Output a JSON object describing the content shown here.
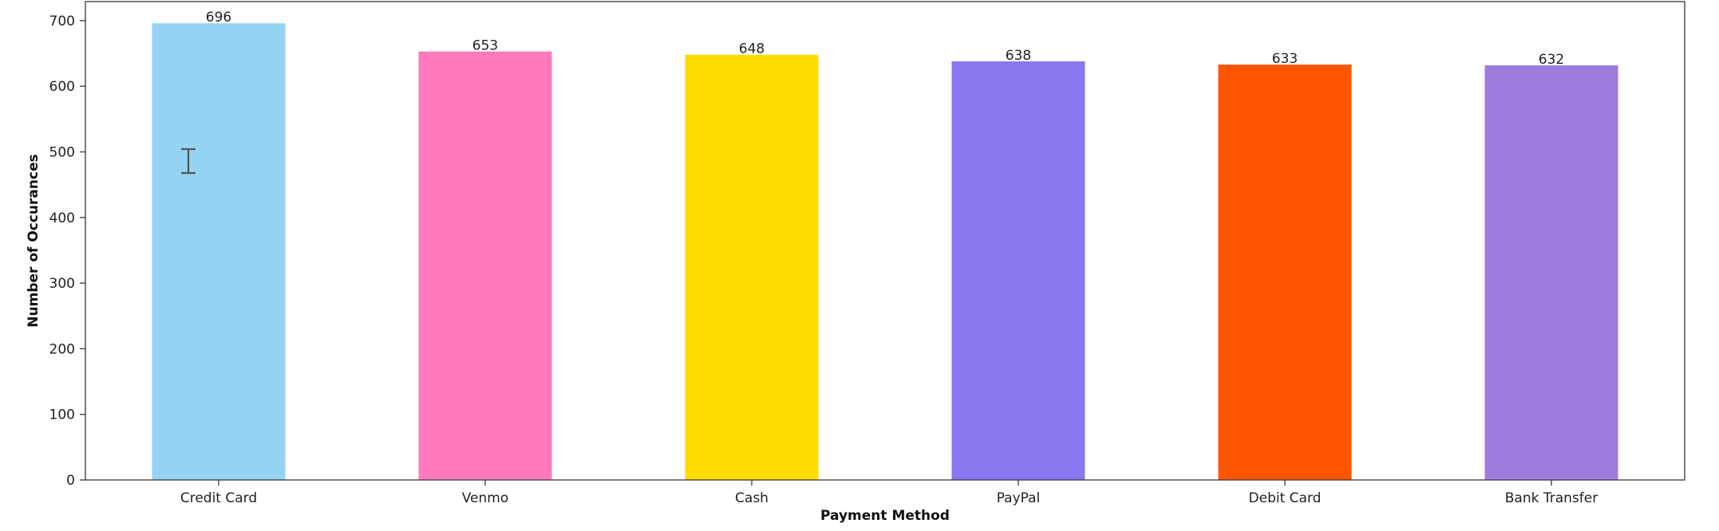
{
  "chart_data": {
    "type": "bar",
    "title": "",
    "xlabel": "Payment Method",
    "ylabel": "Number of Occurances",
    "ylim": [
      0,
      750
    ],
    "yticks": [
      "0",
      "100",
      "200",
      "300",
      "400",
      "500",
      "600",
      "700"
    ],
    "categories": [
      "Credit Card",
      "Venmo",
      "Cash",
      "PayPal",
      "Debit Card",
      "Bank Transfer"
    ],
    "values": [
      696,
      653,
      648,
      638,
      633,
      632
    ],
    "value_labels": [
      "696",
      "653",
      "648",
      "638",
      "633",
      "632"
    ],
    "colors": [
      "#97d3f2",
      "#ff79bd",
      "#ffdb00",
      "#8878f0",
      "#ff5500",
      "#9d7cdd"
    ],
    "grid": false,
    "legend": "none"
  },
  "cursor": {
    "icon": "text-cursor-icon"
  }
}
